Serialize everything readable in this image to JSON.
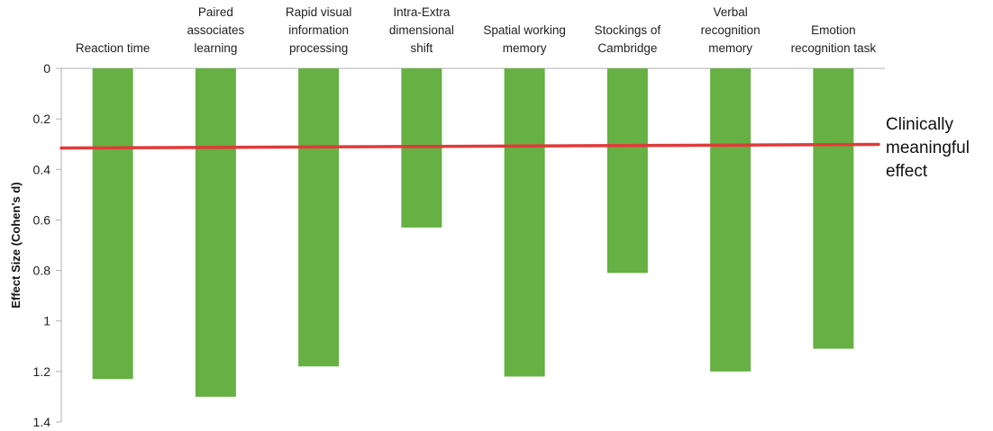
{
  "chart_data": {
    "type": "bar",
    "orientation": "vertical",
    "categories": [
      "Reaction time",
      "Paired associates learning",
      "Rapid visual information processing",
      "Intra-Extra dimensional shift",
      "Spatial working memory",
      "Stockings of Cambridge",
      "Verbal recognition memory",
      "Emotion recognition task"
    ],
    "category_lines": [
      [
        "Reaction time"
      ],
      [
        "Paired",
        "associates",
        "learning"
      ],
      [
        "Rapid visual",
        "information",
        "processing"
      ],
      [
        "Intra-Extra",
        "dimensional",
        "shift"
      ],
      [
        "Spatial working",
        "memory"
      ],
      [
        "Stockings of",
        "Cambridge"
      ],
      [
        "Verbal",
        "recognition",
        "memory"
      ],
      [
        "Emotion",
        "recognition task"
      ]
    ],
    "values": [
      1.23,
      1.3,
      1.18,
      0.63,
      1.22,
      0.81,
      1.2,
      1.11
    ],
    "ylabel": "Effect Size (Cohen's d)",
    "xlabel": "",
    "ylim": [
      0,
      1.4
    ],
    "y_reversed": true,
    "y_ticks": [
      0,
      0.2,
      0.4,
      0.6,
      0.8,
      1,
      1.2,
      1.4
    ],
    "y_tick_labels": [
      "0",
      "0.2",
      "0.4",
      "0.6",
      "0.8",
      "1",
      "1.2",
      "1.4"
    ],
    "x_axis_position": "top",
    "grid": false,
    "legend": "none",
    "bar_color": "#66b044",
    "reference_line": {
      "value": 0.31,
      "color": "#e03a3a",
      "label_lines": [
        "Clinically",
        "meaningful",
        "effect"
      ]
    }
  }
}
